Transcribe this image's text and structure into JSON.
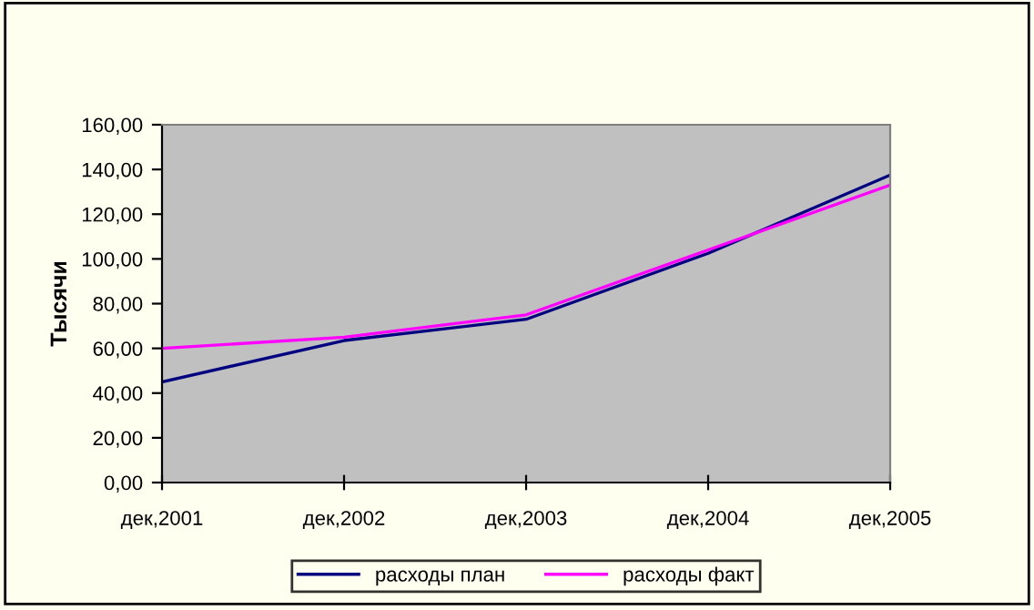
{
  "chart_data": {
    "type": "line",
    "ylabel": "Тысячи",
    "categories": [
      "дек,2001",
      "дек,2002",
      "дек,2003",
      "дек,2004",
      "дек,2005"
    ],
    "series": [
      {
        "name": "расходы план",
        "color": "#000080",
        "values": [
          45,
          63.5,
          73,
          102.5,
          137.5
        ]
      },
      {
        "name": "расходы факт",
        "color": "#ff00ff",
        "values": [
          60,
          65,
          75,
          104,
          133
        ]
      }
    ],
    "ylim": [
      0,
      160
    ],
    "yticks": [
      {
        "value": 0,
        "label": "0,00"
      },
      {
        "value": 20,
        "label": "20,00"
      },
      {
        "value": 40,
        "label": "40,00"
      },
      {
        "value": 60,
        "label": "60,00"
      },
      {
        "value": 80,
        "label": "80,00"
      },
      {
        "value": 100,
        "label": "100,00"
      },
      {
        "value": 120,
        "label": "120,00"
      },
      {
        "value": 140,
        "label": "140,00"
      },
      {
        "value": 160,
        "label": "160,00"
      }
    ],
    "grid": false,
    "legend": "bottom",
    "marker": "none",
    "line_style": "solid"
  }
}
